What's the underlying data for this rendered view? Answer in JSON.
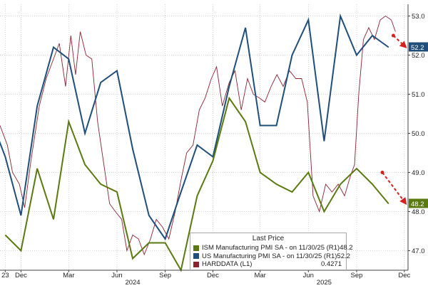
{
  "chart_data": {
    "type": "line",
    "x_ticks": [
      {
        "label": "23",
        "x": "2023-11-01"
      },
      {
        "label": "Dec",
        "x": "2023-12-01"
      },
      {
        "label": "Mar",
        "x": "2024-03-01"
      },
      {
        "label": "Jun",
        "x": "2024-06-01"
      },
      {
        "label": "Sep",
        "x": "2024-09-01"
      },
      {
        "label": "Dec",
        "x": "2024-12-01"
      },
      {
        "label": "Mar",
        "x": "2025-03-01"
      },
      {
        "label": "Jun",
        "x": "2025-06-01"
      },
      {
        "label": "Sep",
        "x": "2025-09-01"
      },
      {
        "label": "Dec",
        "x": "2025-12-01"
      }
    ],
    "year_labels": [
      {
        "label": "2024",
        "x": "2024-07-01"
      },
      {
        "label": "2025",
        "x": "2025-07-01"
      }
    ],
    "y_ticks": [
      47.0,
      48.0,
      49.0,
      50.0,
      51.0,
      52.0,
      53.0
    ],
    "ylim": [
      46.5,
      53.3
    ],
    "xlim": [
      "2023-10-22",
      "2025-12-08"
    ],
    "grid": true,
    "legend": {
      "title": "Last Price",
      "placement": "bottom-right"
    },
    "series": [
      {
        "name": "ISM Manufacturing PMI SA -",
        "legend_detail": "on 11/30/25 (R1)",
        "legend_value": "48.2",
        "color": "#5a7a10",
        "axis": "right",
        "points": [
          [
            "2023-11-01",
            47.4
          ],
          [
            "2023-12-01",
            47.0
          ],
          [
            "2024-01-01",
            49.1
          ],
          [
            "2024-02-01",
            47.8
          ],
          [
            "2024-03-01",
            50.3
          ],
          [
            "2024-04-01",
            49.2
          ],
          [
            "2024-05-01",
            48.7
          ],
          [
            "2024-06-01",
            48.5
          ],
          [
            "2024-07-01",
            46.8
          ],
          [
            "2024-08-01",
            47.2
          ],
          [
            "2024-09-01",
            47.2
          ],
          [
            "2024-10-01",
            46.5
          ],
          [
            "2024-11-01",
            48.4
          ],
          [
            "2024-12-01",
            49.3
          ],
          [
            "2025-01-01",
            50.9
          ],
          [
            "2025-02-01",
            50.3
          ],
          [
            "2025-03-01",
            49.0
          ],
          [
            "2025-04-01",
            48.7
          ],
          [
            "2025-05-01",
            48.5
          ],
          [
            "2025-06-01",
            49.0
          ],
          [
            "2025-07-01",
            48.0
          ],
          [
            "2025-08-01",
            48.7
          ],
          [
            "2025-09-01",
            49.1
          ],
          [
            "2025-10-01",
            48.7
          ],
          [
            "2025-11-01",
            48.2
          ]
        ]
      },
      {
        "name": "US Manufacturing PMI SA -",
        "legend_detail": "on 11/30/25 (R1)",
        "legend_value": "52.2",
        "color": "#1f4e7a",
        "axis": "right",
        "points": [
          [
            "2023-10-15",
            50.0
          ],
          [
            "2023-11-01",
            49.4
          ],
          [
            "2023-12-01",
            47.9
          ],
          [
            "2024-01-01",
            50.7
          ],
          [
            "2024-02-01",
            52.2
          ],
          [
            "2024-03-01",
            51.9
          ],
          [
            "2024-04-01",
            50.0
          ],
          [
            "2024-05-01",
            51.3
          ],
          [
            "2024-06-01",
            51.6
          ],
          [
            "2024-07-01",
            49.6
          ],
          [
            "2024-08-01",
            47.9
          ],
          [
            "2024-09-01",
            47.3
          ],
          [
            "2024-10-01",
            48.5
          ],
          [
            "2024-11-01",
            49.7
          ],
          [
            "2024-12-01",
            49.4
          ],
          [
            "2025-01-01",
            51.2
          ],
          [
            "2025-02-01",
            52.7
          ],
          [
            "2025-03-01",
            50.2
          ],
          [
            "2025-04-01",
            50.2
          ],
          [
            "2025-05-01",
            52.0
          ],
          [
            "2025-06-01",
            52.9
          ],
          [
            "2025-07-01",
            49.8
          ],
          [
            "2025-08-01",
            53.0
          ],
          [
            "2025-09-01",
            52.0
          ],
          [
            "2025-10-01",
            52.5
          ],
          [
            "2025-11-01",
            52.2
          ]
        ]
      },
      {
        "name": "HARDDATA",
        "legend_detail": "(L1)",
        "legend_value": "0.4271",
        "color": "#8b2232",
        "axis": "left",
        "points": [
          [
            "2023-10-22",
            50.2
          ],
          [
            "2023-11-05",
            49.7
          ],
          [
            "2023-11-15",
            49.0
          ],
          [
            "2023-11-28",
            48.7
          ],
          [
            "2023-12-08",
            48.1
          ],
          [
            "2023-12-20",
            49.3
          ],
          [
            "2024-01-05",
            50.7
          ],
          [
            "2024-01-18",
            51.4
          ],
          [
            "2024-02-01",
            51.9
          ],
          [
            "2024-02-12",
            52.3
          ],
          [
            "2024-02-24",
            51.2
          ],
          [
            "2024-03-05",
            52.5
          ],
          [
            "2024-03-14",
            51.5
          ],
          [
            "2024-03-23",
            52.6
          ],
          [
            "2024-04-03",
            52.0
          ],
          [
            "2024-04-14",
            51.9
          ],
          [
            "2024-04-25",
            50.3
          ],
          [
            "2024-05-06",
            49.3
          ],
          [
            "2024-05-18",
            48.2
          ],
          [
            "2024-05-29",
            48.0
          ],
          [
            "2024-06-10",
            47.8
          ],
          [
            "2024-06-20",
            47.0
          ],
          [
            "2024-07-01",
            47.4
          ],
          [
            "2024-07-12",
            47.3
          ],
          [
            "2024-07-23",
            46.9
          ],
          [
            "2024-08-04",
            47.3
          ],
          [
            "2024-08-15",
            47.8
          ],
          [
            "2024-08-27",
            47.6
          ],
          [
            "2024-09-08",
            47.3
          ],
          [
            "2024-09-20",
            48.0
          ],
          [
            "2024-10-01",
            48.8
          ],
          [
            "2024-10-12",
            49.5
          ],
          [
            "2024-10-24",
            49.7
          ],
          [
            "2024-11-05",
            50.6
          ],
          [
            "2024-11-16",
            50.9
          ],
          [
            "2024-11-28",
            51.4
          ],
          [
            "2024-12-08",
            51.7
          ],
          [
            "2024-12-19",
            50.7
          ],
          [
            "2025-01-01",
            51.3
          ],
          [
            "2025-01-12",
            51.6
          ],
          [
            "2025-01-24",
            50.6
          ],
          [
            "2025-02-05",
            51.4
          ],
          [
            "2025-02-16",
            51.0
          ],
          [
            "2025-02-28",
            50.9
          ],
          [
            "2025-03-10",
            50.8
          ],
          [
            "2025-03-22",
            51.2
          ],
          [
            "2025-04-02",
            51.5
          ],
          [
            "2025-04-14",
            51.2
          ],
          [
            "2025-04-26",
            51.6
          ],
          [
            "2025-05-08",
            51.4
          ],
          [
            "2025-05-19",
            51.4
          ],
          [
            "2025-05-30",
            50.8
          ],
          [
            "2025-06-10",
            48.4
          ],
          [
            "2025-06-22",
            48.0
          ],
          [
            "2025-07-04",
            48.7
          ],
          [
            "2025-07-16",
            48.5
          ],
          [
            "2025-07-28",
            48.7
          ],
          [
            "2025-08-09",
            48.4
          ],
          [
            "2025-08-20",
            48.9
          ],
          [
            "2025-08-28",
            49.2
          ],
          [
            "2025-09-05",
            51.0
          ],
          [
            "2025-09-14",
            52.4
          ],
          [
            "2025-09-24",
            52.7
          ],
          [
            "2025-10-05",
            52.4
          ],
          [
            "2025-10-16",
            52.9
          ],
          [
            "2025-10-26",
            53.0
          ],
          [
            "2025-11-06",
            52.9
          ],
          [
            "2025-11-14",
            52.6
          ]
        ]
      }
    ],
    "annotations": [
      {
        "type": "dashed-arrow",
        "color": "#d62020",
        "from": [
          "2025-11-10",
          52.5
        ],
        "to": [
          "2025-12-04",
          52.2
        ]
      },
      {
        "type": "dashed-arrow",
        "color": "#d62020",
        "from": [
          "2025-10-20",
          49.0
        ],
        "to": [
          "2025-12-04",
          48.2
        ]
      }
    ],
    "end_labels": [
      {
        "value": "52.2",
        "y": 52.2,
        "color": "#1f4e7a"
      },
      {
        "value": "48.2",
        "y": 48.2,
        "color": "#5a7a10"
      }
    ]
  }
}
